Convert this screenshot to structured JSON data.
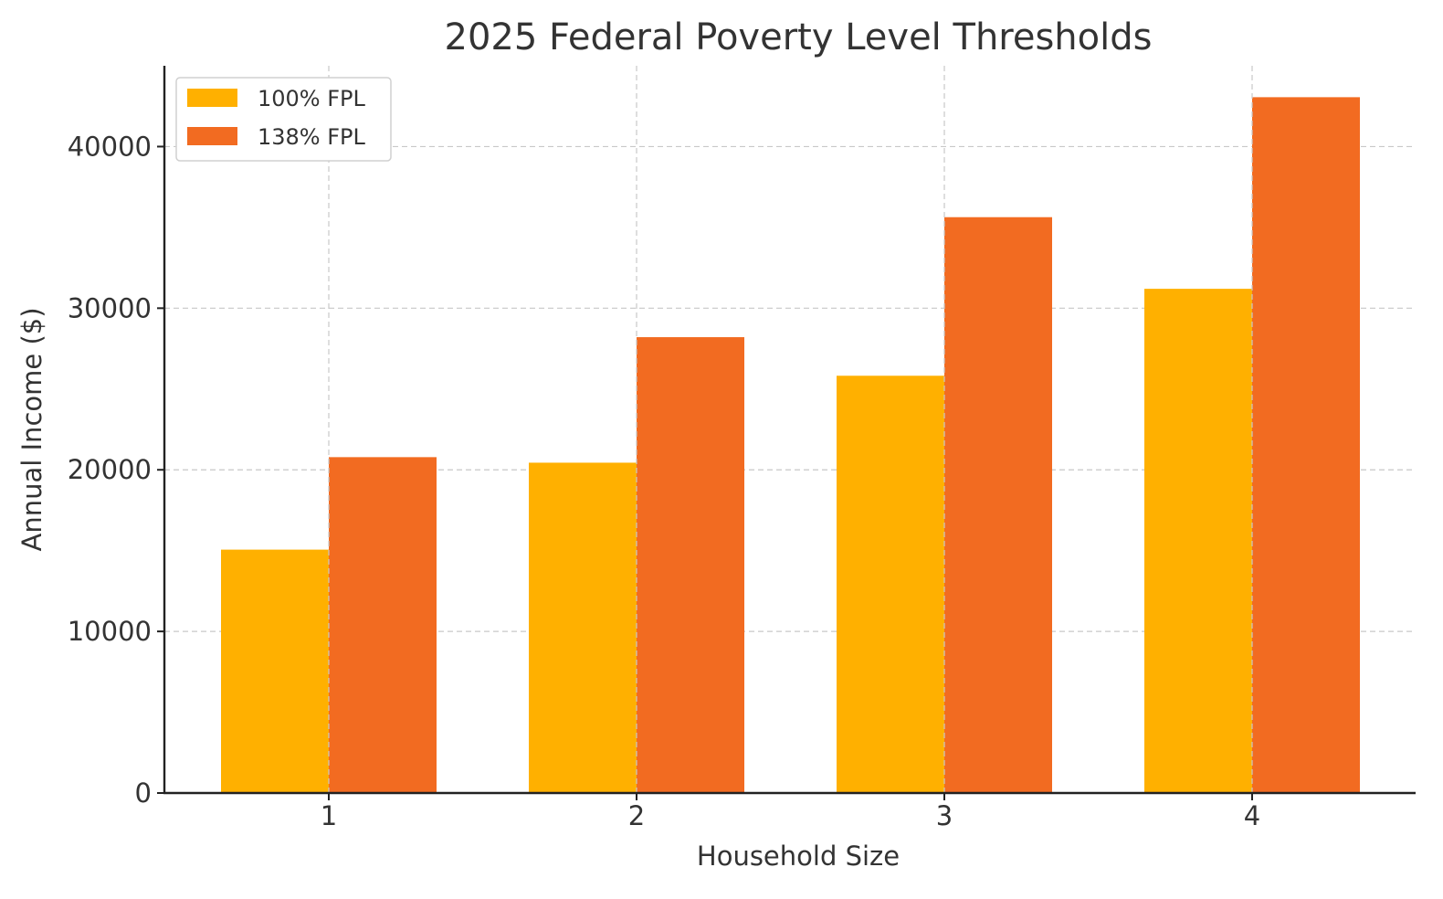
{
  "chart_data": {
    "type": "bar",
    "title": "2025 Federal Poverty Level Thresholds",
    "xlabel": "Household Size",
    "ylabel": "Annual Income ($)",
    "categories": [
      "1",
      "2",
      "3",
      "4"
    ],
    "series": [
      {
        "name": "100% FPL",
        "color": "#FFB000",
        "values": [
          15060,
          20440,
          25820,
          31200
        ]
      },
      {
        "name": "138% FPL",
        "color": "#F26B21",
        "values": [
          20783,
          28207,
          35632,
          43056
        ]
      }
    ],
    "yticks": [
      0,
      10000,
      20000,
      30000,
      40000
    ],
    "ytick_labels": [
      "0",
      "10000",
      "20000",
      "30000",
      "40000"
    ],
    "ylim": [
      0,
      45000
    ],
    "grid": true,
    "legend_position": "top-left"
  }
}
